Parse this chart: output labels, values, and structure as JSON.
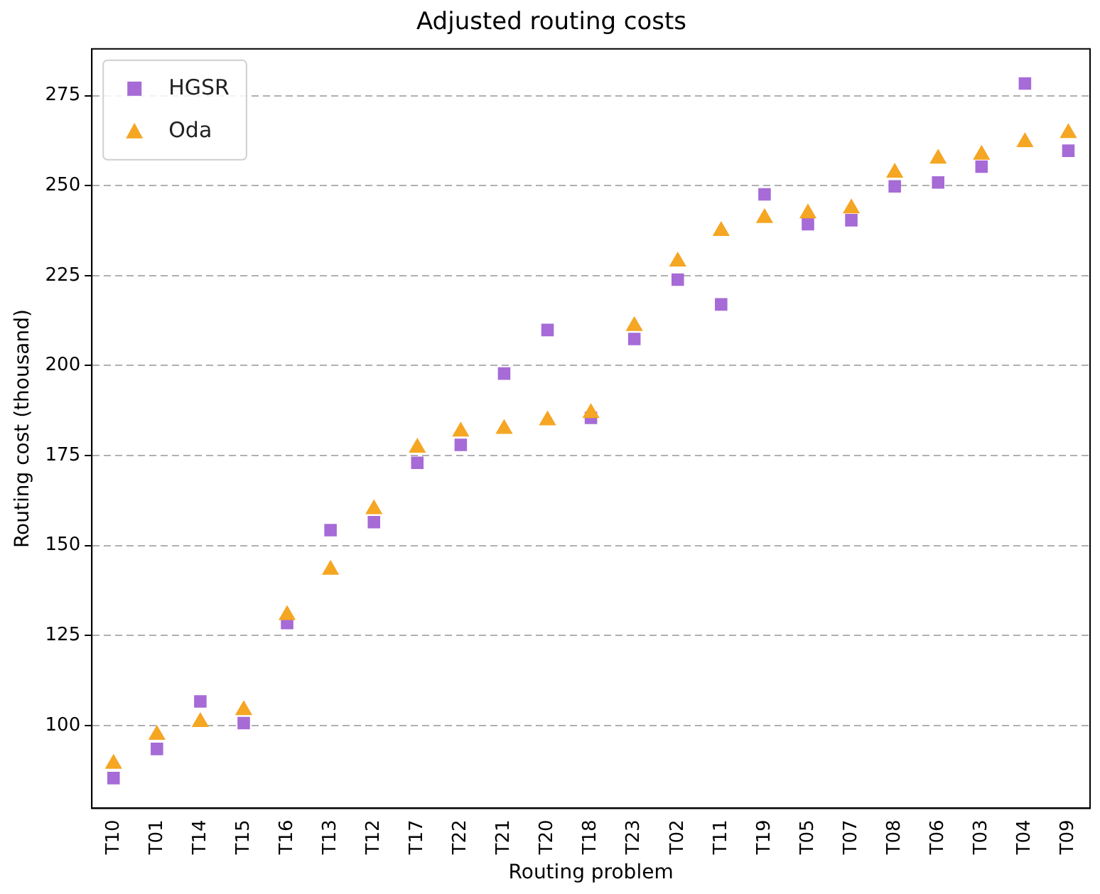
{
  "chart_data": {
    "type": "scatter",
    "title": "Adjusted routing costs",
    "xlabel": "Routing problem",
    "ylabel": "Routing cost (thousand)",
    "categories": [
      "T10",
      "T01",
      "T14",
      "T15",
      "T16",
      "T13",
      "T12",
      "T17",
      "T22",
      "T21",
      "T20",
      "T18",
      "T23",
      "T02",
      "T11",
      "T19",
      "T05",
      "T07",
      "T08",
      "T06",
      "T03",
      "T04",
      "T09"
    ],
    "series": [
      {
        "name": "HGSR",
        "color": "#a66bd6",
        "marker": "square",
        "values": [
          85.4,
          93.5,
          106.7,
          100.7,
          128.5,
          154.3,
          156.5,
          173,
          178,
          197.8,
          209.9,
          185.5,
          207.4,
          223.9,
          217,
          247.6,
          239.3,
          240.4,
          249.8,
          250.9,
          255.3,
          278.4,
          259.7
        ]
      },
      {
        "name": "Oda",
        "color": "#f5a623",
        "marker": "triangle",
        "values": [
          89.4,
          97.4,
          101,
          104.3,
          130.7,
          143.3,
          160.1,
          177.2,
          181.7,
          182.4,
          184.8,
          186.8,
          211,
          228.9,
          237.4,
          241,
          242.3,
          243.7,
          253.6,
          257.5,
          258.6,
          262.1,
          264.6
        ]
      }
    ],
    "ylim": [
      77,
      288
    ],
    "yticks": [
      100,
      125,
      150,
      175,
      200,
      225,
      250,
      275
    ],
    "grid": "y",
    "legend": "top left"
  }
}
